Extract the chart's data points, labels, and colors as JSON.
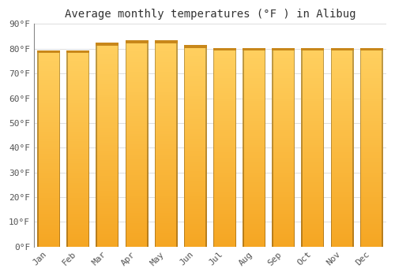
{
  "title": "Average monthly temperatures (°F ) in Alibug",
  "months": [
    "Jan",
    "Feb",
    "Mar",
    "Apr",
    "May",
    "Jun",
    "Jul",
    "Aug",
    "Sep",
    "Oct",
    "Nov",
    "Dec"
  ],
  "values": [
    79,
    79,
    82,
    83,
    83,
    81,
    80,
    80,
    80,
    80,
    80,
    80
  ],
  "background_color": "#FFFFFF",
  "plot_bg_color": "#FFFFFF",
  "grid_color": "#DDDDDD",
  "ylim": [
    0,
    90
  ],
  "ytick_step": 10,
  "title_fontsize": 10,
  "tick_fontsize": 8,
  "font_family": "monospace",
  "bar_width": 0.78,
  "bar_color_bottom": "#F5A623",
  "bar_color_top": "#FFD060",
  "bar_edge_color": "#C8871A",
  "bar_gradient_steps": 80
}
